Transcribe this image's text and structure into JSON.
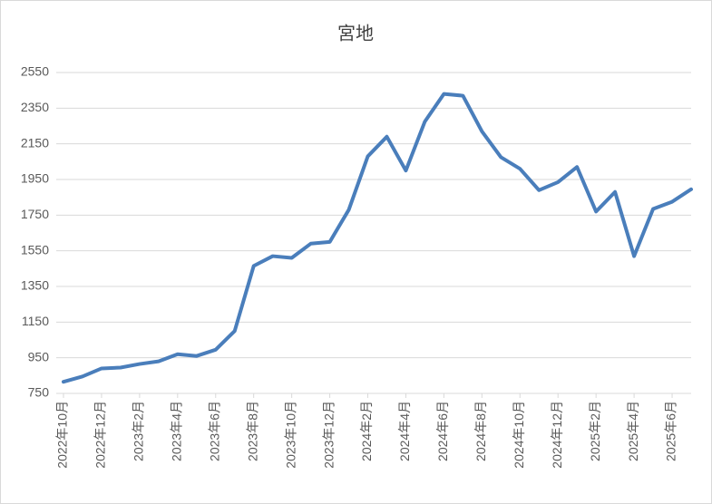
{
  "chart_data": {
    "type": "line",
    "title": "宮地",
    "categories": [
      "2022年10月",
      null,
      "2022年12月",
      null,
      "2023年2月",
      null,
      "2023年4月",
      null,
      "2023年6月",
      null,
      "2023年8月",
      null,
      "2023年10月",
      null,
      "2023年12月",
      null,
      "2024年2月",
      null,
      "2024年4月",
      null,
      "2024年6月",
      null,
      "2024年8月",
      null,
      "2024年10月",
      null,
      "2024年12月",
      null,
      "2025年2月",
      null,
      "2025年4月",
      null,
      "2025年6月",
      null
    ],
    "series": [
      {
        "name": "宮地",
        "color": "#4a7ebb",
        "values": [
          815,
          845,
          890,
          895,
          915,
          930,
          970,
          960,
          995,
          1100,
          1465,
          1520,
          1510,
          1590,
          1600,
          1780,
          2080,
          2190,
          2000,
          2275,
          2430,
          2420,
          2220,
          2075,
          2010,
          1890,
          1935,
          2020,
          1770,
          1880,
          1520,
          1785,
          1825,
          1895
        ]
      }
    ],
    "ylim": [
      750,
      2550
    ],
    "yticks": [
      750,
      950,
      1150,
      1350,
      1550,
      1750,
      1950,
      2150,
      2350,
      2550
    ],
    "grid": true
  }
}
